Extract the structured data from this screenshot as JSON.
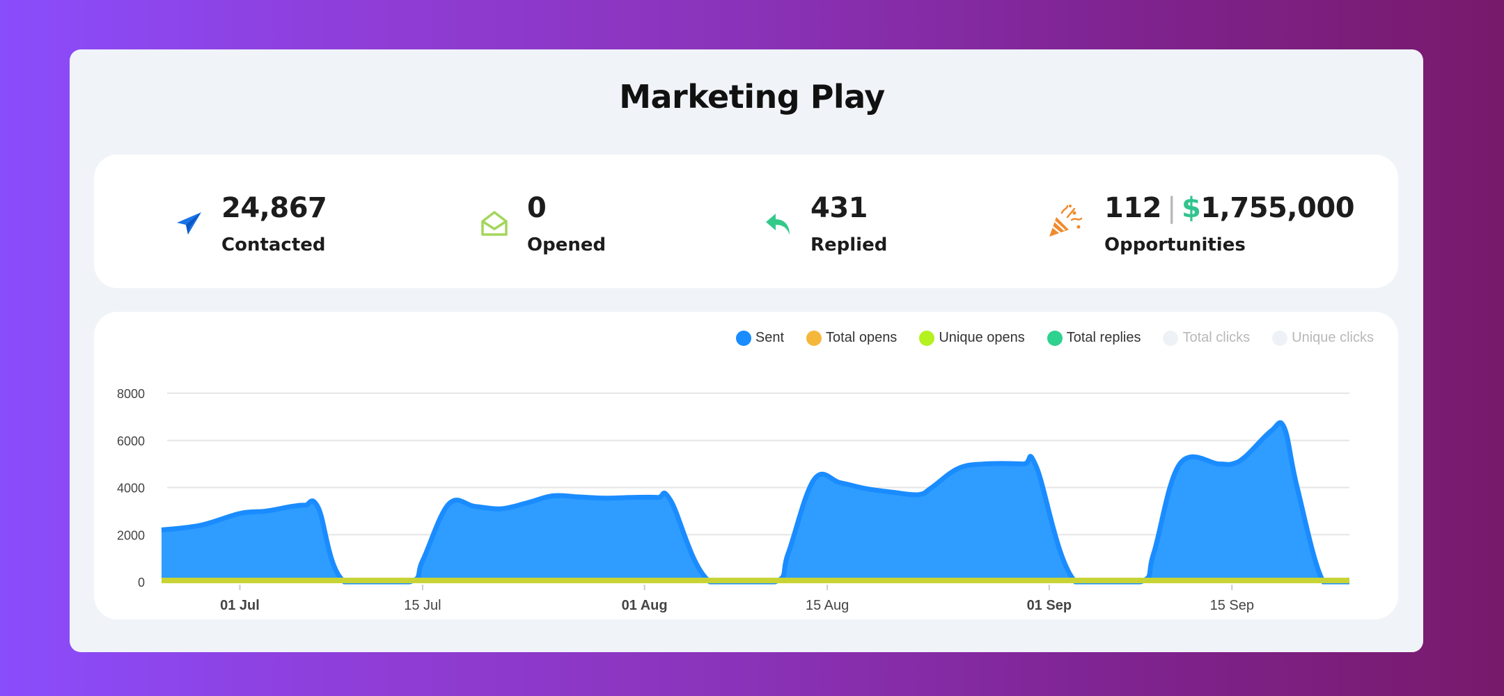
{
  "page": {
    "title": "Marketing Play"
  },
  "stats": [
    {
      "icon": "paper-plane-icon",
      "value": "24,867",
      "label": "Contacted",
      "color": "#1a73e8"
    },
    {
      "icon": "open-envelope-icon",
      "value": "0",
      "label": "Opened",
      "color": "#a3d65c"
    },
    {
      "icon": "reply-arrow-icon",
      "value": "431",
      "label": "Replied",
      "color": "#34c98a"
    },
    {
      "icon": "party-popper-icon",
      "count": "112",
      "separator": "|",
      "currency": "$",
      "amount": "1,755,000",
      "label": "Opportunities",
      "color": "#f08a2c"
    }
  ],
  "chart_data": {
    "type": "area",
    "legend": [
      {
        "name": "Sent",
        "color": "#1a8cff",
        "active": true
      },
      {
        "name": "Total opens",
        "color": "#f5b73b",
        "active": true
      },
      {
        "name": "Unique opens",
        "color": "#b5f01f",
        "active": true
      },
      {
        "name": "Total replies",
        "color": "#2fd18f",
        "active": true
      },
      {
        "name": "Total clicks",
        "color": "#eef2f6",
        "active": false
      },
      {
        "name": "Unique clicks",
        "color": "#eef2f6",
        "active": false
      }
    ],
    "legend_position": "top-right",
    "y_ticks": [
      "8000",
      "6000",
      "4000",
      "2000",
      "0"
    ],
    "ylim": [
      0,
      8000
    ],
    "x_ticks": [
      {
        "label": "01 Jul",
        "day": 6,
        "bold": true
      },
      {
        "label": "15 Jul",
        "day": 20,
        "bold": false
      },
      {
        "label": "01 Aug",
        "day": 37,
        "bold": true
      },
      {
        "label": "15 Aug",
        "day": 51,
        "bold": false
      },
      {
        "label": "01 Sep",
        "day": 68,
        "bold": true
      },
      {
        "label": "15 Sep",
        "day": 82,
        "bold": false
      }
    ],
    "x_range_days": [
      0,
      91
    ],
    "series": [
      {
        "name": "Sent",
        "color": "#1a8cff",
        "points": [
          [
            0,
            2200
          ],
          [
            3,
            2400
          ],
          [
            6,
            2900
          ],
          [
            8,
            3000
          ],
          [
            10,
            3200
          ],
          [
            11,
            3250
          ],
          [
            12,
            3150
          ],
          [
            14,
            0
          ],
          [
            19,
            0
          ],
          [
            20,
            900
          ],
          [
            22,
            3300
          ],
          [
            24,
            3200
          ],
          [
            26,
            3100
          ],
          [
            28,
            3350
          ],
          [
            30,
            3650
          ],
          [
            32,
            3600
          ],
          [
            34,
            3550
          ],
          [
            36,
            3580
          ],
          [
            38,
            3580
          ],
          [
            39,
            3450
          ],
          [
            42,
            0
          ],
          [
            47,
            0
          ],
          [
            48,
            1200
          ],
          [
            50,
            4350
          ],
          [
            52,
            4200
          ],
          [
            54,
            3950
          ],
          [
            56,
            3800
          ],
          [
            58,
            3700
          ],
          [
            59,
            4000
          ],
          [
            61,
            4800
          ],
          [
            63,
            5000
          ],
          [
            66,
            5000
          ],
          [
            67,
            4900
          ],
          [
            70,
            0
          ],
          [
            75,
            0
          ],
          [
            76,
            1200
          ],
          [
            78,
            5000
          ],
          [
            81,
            5000
          ],
          [
            82,
            5000
          ],
          [
            83,
            5300
          ],
          [
            85,
            6400
          ],
          [
            86,
            6550
          ],
          [
            87,
            4000
          ],
          [
            89,
            0
          ],
          [
            91,
            0
          ]
        ]
      },
      {
        "name": "Total replies",
        "color": "#c8d436",
        "points": [
          [
            0,
            0
          ],
          [
            91,
            0
          ]
        ]
      }
    ]
  }
}
